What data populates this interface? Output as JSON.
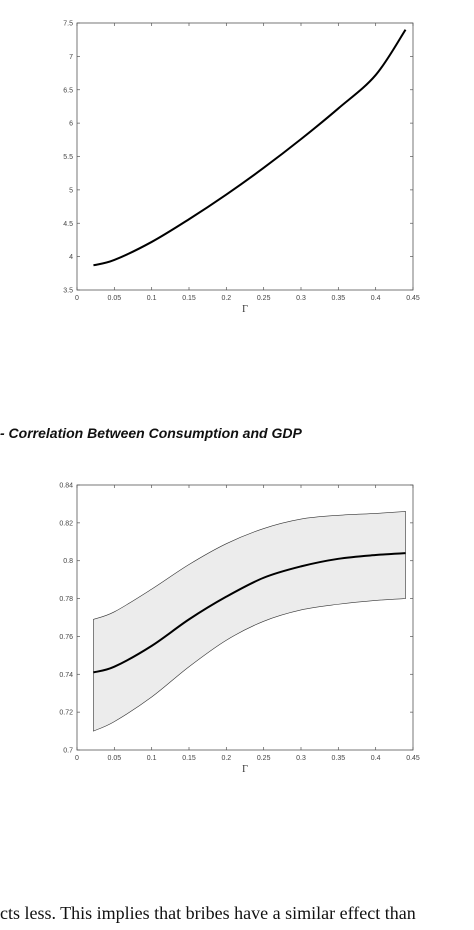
{
  "caption": "- Correlation Between Consumption and GDP",
  "body_text": "cts less. This implies that bribes have a similar effect than",
  "chart_data": [
    {
      "type": "line",
      "xlabel": "Γ",
      "ylabel": "",
      "xlim": [
        0,
        0.45
      ],
      "ylim": [
        3.5,
        7.5
      ],
      "xticks": [
        "0",
        "0.05",
        "0.1",
        "0.15",
        "0.2",
        "0.25",
        "0.3",
        "0.35",
        "0.4",
        "0.45"
      ],
      "yticks": [
        "3.5",
        "4",
        "4.5",
        "5",
        "5.5",
        "6",
        "6.5",
        "7",
        "7.5"
      ],
      "grid": false,
      "series": [
        {
          "x": [
            0.022,
            0.05,
            0.1,
            0.15,
            0.2,
            0.25,
            0.3,
            0.35,
            0.4,
            0.44
          ],
          "y": [
            3.87,
            3.95,
            4.22,
            4.56,
            4.93,
            5.33,
            5.76,
            6.22,
            6.72,
            7.4
          ]
        }
      ]
    },
    {
      "type": "area",
      "xlabel": "Γ",
      "ylabel": "",
      "xlim": [
        0,
        0.45
      ],
      "ylim": [
        0.7,
        0.84
      ],
      "xticks": [
        "0",
        "0.05",
        "0.1",
        "0.15",
        "0.2",
        "0.25",
        "0.3",
        "0.35",
        "0.4",
        "0.45"
      ],
      "yticks": [
        "0.7",
        "0.72",
        "0.74",
        "0.76",
        "0.78",
        "0.8",
        "0.82",
        "0.84"
      ],
      "grid": false,
      "x": [
        0.022,
        0.05,
        0.1,
        0.15,
        0.2,
        0.25,
        0.3,
        0.35,
        0.4,
        0.44
      ],
      "series": [
        {
          "role": "mean",
          "y": [
            0.741,
            0.744,
            0.755,
            0.769,
            0.781,
            0.791,
            0.797,
            0.801,
            0.803,
            0.804
          ]
        },
        {
          "role": "upper",
          "y": [
            0.769,
            0.773,
            0.785,
            0.798,
            0.809,
            0.817,
            0.822,
            0.824,
            0.825,
            0.826
          ]
        },
        {
          "role": "lower",
          "y": [
            0.71,
            0.715,
            0.728,
            0.744,
            0.758,
            0.768,
            0.774,
            0.777,
            0.779,
            0.78
          ]
        }
      ],
      "band_color": "#ececec"
    }
  ]
}
